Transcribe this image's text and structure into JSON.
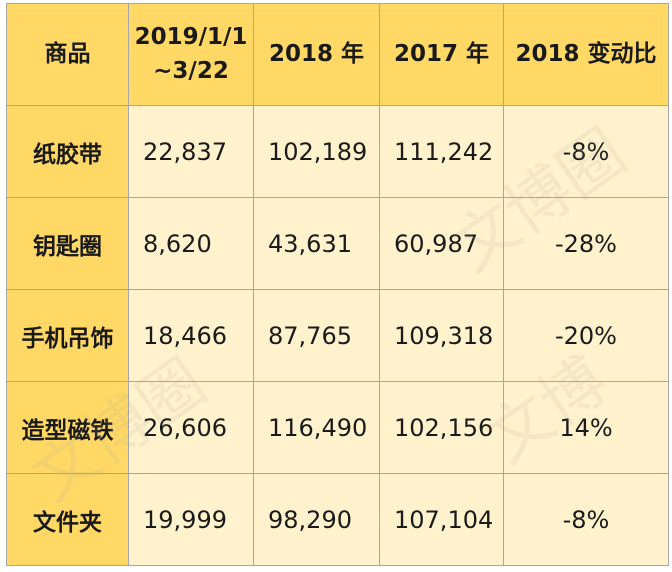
{
  "table": {
    "headers": [
      "商品",
      "2019/1/1\n~3/22",
      "2018 年",
      "2017 年",
      "2018 变动比"
    ],
    "rows": [
      [
        "纸胶带",
        "22,837",
        "102,189",
        "111,242",
        "-8%"
      ],
      [
        "钥匙圈",
        "8,620",
        "43,631",
        "60,987",
        "-28%"
      ],
      [
        "手机吊饰",
        "18,466",
        "87,765",
        "109,318",
        "-20%"
      ],
      [
        "造型磁铁",
        "26,606",
        "116,490",
        "102,156",
        "14%"
      ],
      [
        "文件夹",
        "19,999",
        "98,290",
        "107,104",
        "-8%"
      ]
    ]
  },
  "watermark": {
    "text_1": "文博圈",
    "text_2": "文博圈",
    "text_3": "文博"
  },
  "colors": {
    "header_fill": "#ffd866",
    "cell_fill": "#fff2cc",
    "border": "#a6a6a6"
  }
}
